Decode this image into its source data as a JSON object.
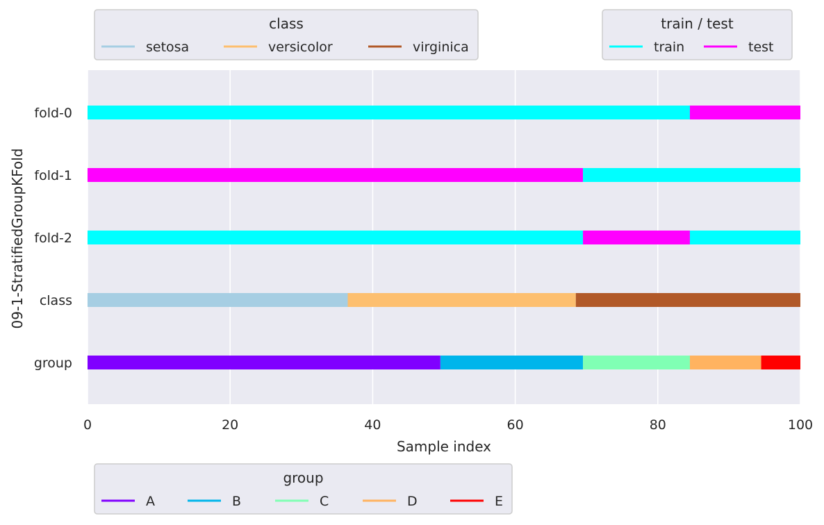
{
  "chart_data": {
    "type": "bar",
    "orientation": "horizontal-segmented",
    "xlabel": "Sample index",
    "ylabel": "09-1-StratifiedGroupKFold",
    "xlim": [
      0,
      100
    ],
    "xticks": [
      "0",
      "20",
      "40",
      "60",
      "80",
      "100"
    ],
    "grid": true,
    "background": "#eaeaf2",
    "rows": [
      {
        "label": "fold-0",
        "segments": [
          {
            "start": 0,
            "end": 84.5,
            "name": "train"
          },
          {
            "start": 84.5,
            "end": 100,
            "name": "test"
          }
        ]
      },
      {
        "label": "fold-1",
        "segments": [
          {
            "start": 0,
            "end": 69.5,
            "name": "test"
          },
          {
            "start": 69.5,
            "end": 100,
            "name": "train"
          }
        ]
      },
      {
        "label": "fold-2",
        "segments": [
          {
            "start": 0,
            "end": 69.5,
            "name": "train"
          },
          {
            "start": 69.5,
            "end": 84.5,
            "name": "test"
          },
          {
            "start": 84.5,
            "end": 100,
            "name": "train"
          }
        ]
      },
      {
        "label": "class",
        "segments": [
          {
            "start": 0,
            "end": 36.5,
            "name": "setosa"
          },
          {
            "start": 36.5,
            "end": 68.5,
            "name": "versicolor"
          },
          {
            "start": 68.5,
            "end": 100,
            "name": "virginica"
          }
        ]
      },
      {
        "label": "group",
        "segments": [
          {
            "start": 0,
            "end": 49.5,
            "name": "A"
          },
          {
            "start": 49.5,
            "end": 69.5,
            "name": "B"
          },
          {
            "start": 69.5,
            "end": 84.5,
            "name": "C"
          },
          {
            "start": 84.5,
            "end": 94.5,
            "name": "D"
          },
          {
            "start": 94.5,
            "end": 100,
            "name": "E"
          }
        ]
      }
    ],
    "colors": {
      "train": "#00ffff",
      "test": "#ff00ff",
      "setosa": "#a6cee3",
      "versicolor": "#fdbf6f",
      "virginica": "#b15928",
      "A": "#8000ff",
      "B": "#00b5eb",
      "C": "#80ffb4",
      "D": "#ffb360",
      "E": "#ff0000"
    },
    "legends": [
      {
        "title": "class",
        "placement": "top-left",
        "entries": [
          "setosa",
          "versicolor",
          "virginica"
        ]
      },
      {
        "title": "train / test",
        "placement": "top-right",
        "entries": [
          "train",
          "test"
        ]
      },
      {
        "title": "group",
        "placement": "bottom-left",
        "entries": [
          "A",
          "B",
          "C",
          "D",
          "E"
        ]
      }
    ]
  }
}
